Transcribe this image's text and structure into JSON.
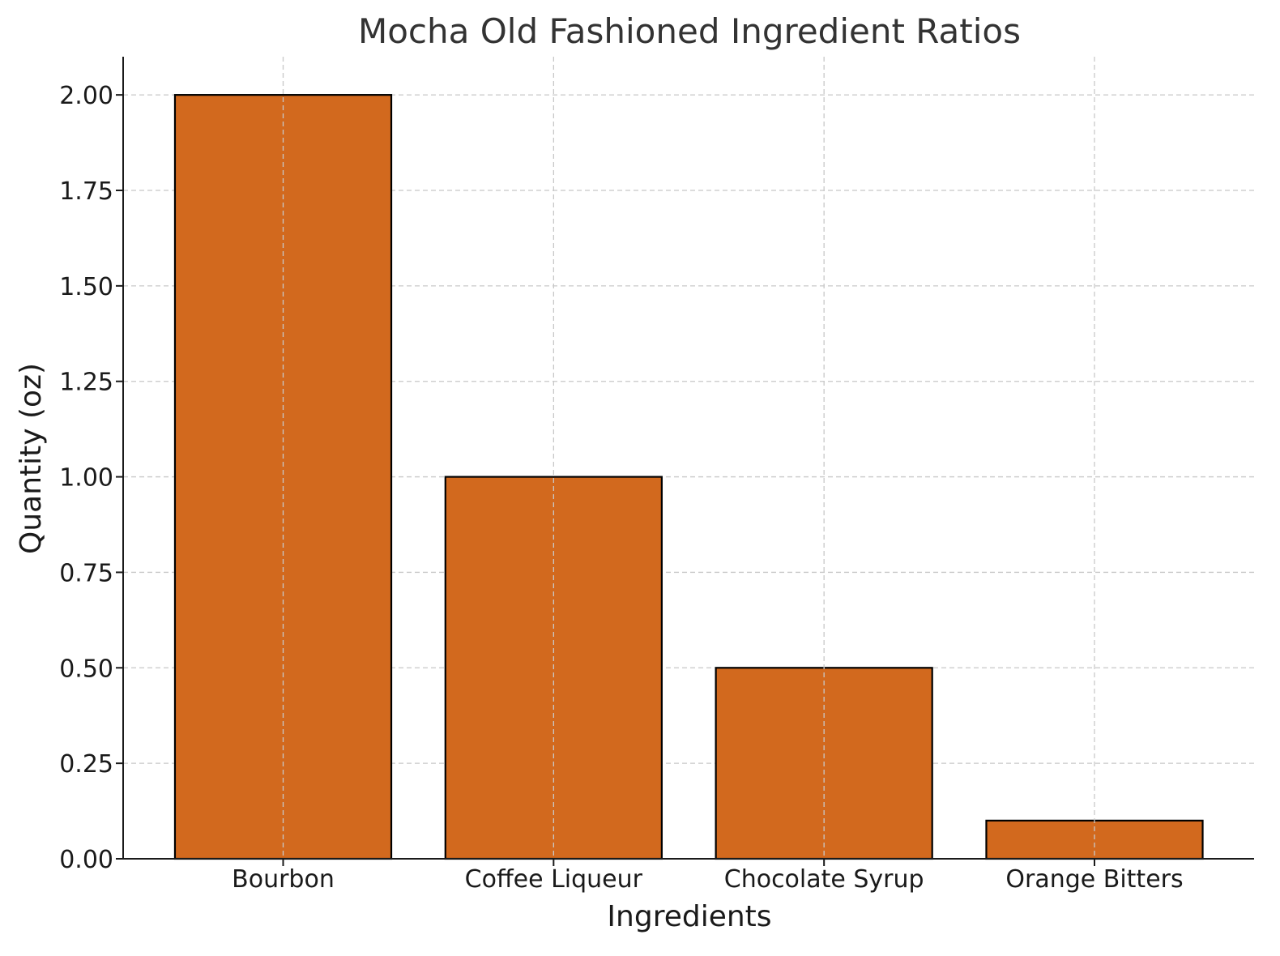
{
  "chart_data": {
    "type": "bar",
    "title": "Mocha Old Fashioned Ingredient Ratios",
    "xlabel": "Ingredients",
    "ylabel": "Quantity (oz)",
    "categories": [
      "Bourbon",
      "Coffee Liqueur",
      "Chocolate Syrup",
      "Orange Bitters"
    ],
    "values": [
      2.0,
      1.0,
      0.5,
      0.1
    ],
    "ylim": [
      0,
      2.1
    ],
    "yticks": [
      "0.00",
      "0.25",
      "0.50",
      "0.75",
      "1.00",
      "1.25",
      "1.50",
      "1.75",
      "2.00"
    ],
    "grid": true,
    "bar_color": "#D2691E",
    "edge_color": "#000000"
  }
}
